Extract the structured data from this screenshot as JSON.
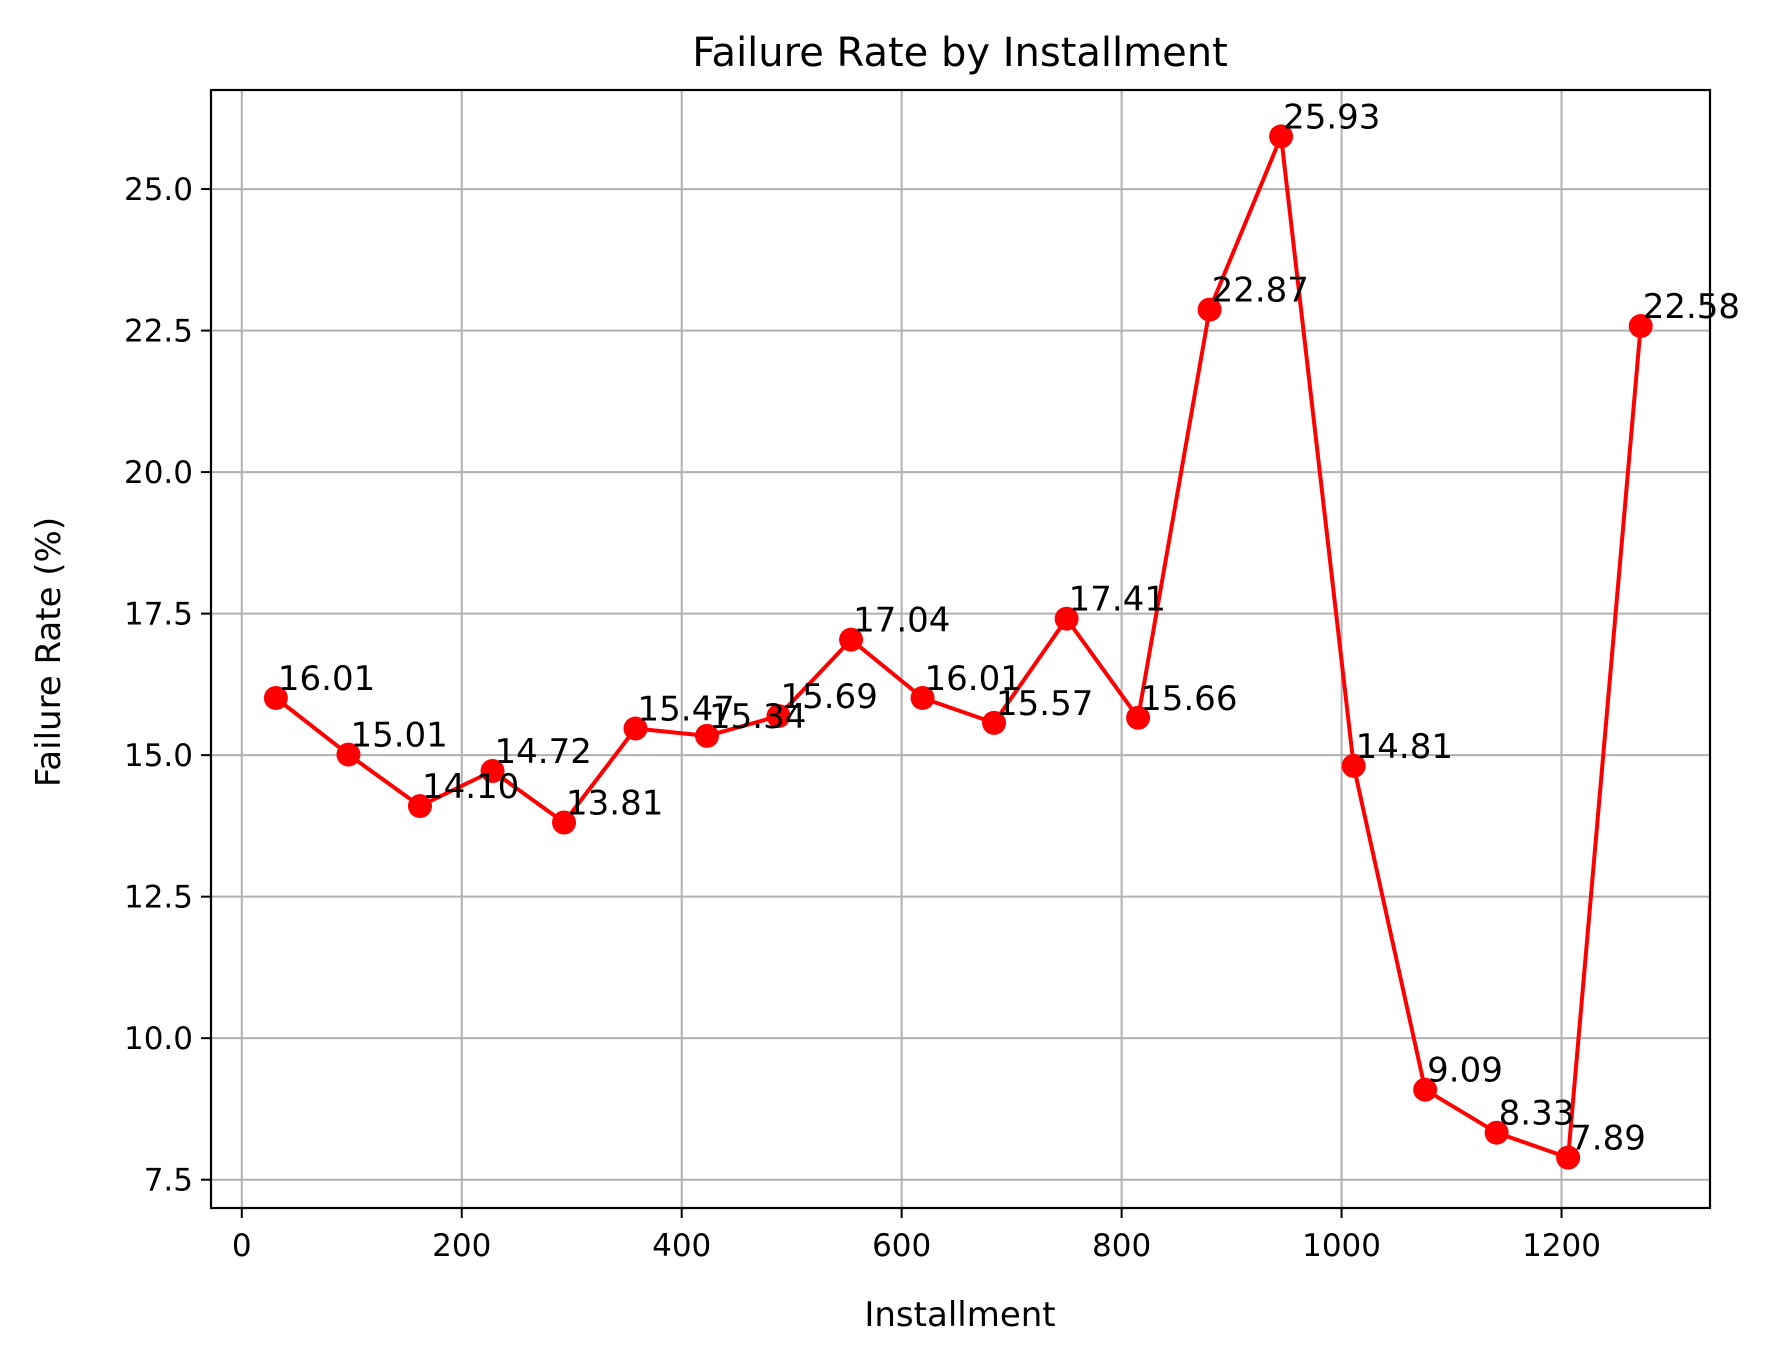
{
  "chart_data": {
    "type": "line",
    "title": "Failure Rate by Installment",
    "xlabel": "Installment",
    "ylabel": "Failure Rate (%)",
    "xlim": [
      -28,
      1335
    ],
    "ylim": [
      7.0,
      26.75
    ],
    "xticks": [
      0,
      200,
      400,
      600,
      800,
      1000,
      1200
    ],
    "xtick_labels": [
      "0",
      "200",
      "400",
      "600",
      "800",
      "1000",
      "1200"
    ],
    "yticks": [
      7.5,
      10.0,
      12.5,
      15.0,
      17.5,
      20.0,
      22.5,
      25.0
    ],
    "ytick_labels": [
      "7.5",
      "10.0",
      "12.5",
      "15.0",
      "17.5",
      "20.0",
      "22.5",
      "25.0"
    ],
    "grid": true,
    "legend": "none",
    "series": [
      {
        "color": "#ff0000",
        "marker": "circle",
        "x": [
          31,
          97,
          162,
          228,
          293,
          358,
          423,
          488,
          554,
          619,
          684,
          750,
          815,
          880,
          945,
          1011,
          1076,
          1141,
          1206,
          1272
        ],
        "y": [
          16.01,
          15.01,
          14.1,
          14.72,
          13.81,
          15.47,
          15.34,
          15.69,
          17.04,
          16.01,
          15.57,
          17.41,
          15.66,
          22.87,
          25.93,
          14.81,
          9.09,
          8.33,
          7.89,
          22.58
        ],
        "labels": [
          "16.01",
          "15.01",
          "14.10",
          "14.72",
          "13.81",
          "15.47",
          "15.34",
          "15.69",
          "17.04",
          "16.01",
          "15.57",
          "17.41",
          "15.66",
          "22.87",
          "25.93",
          "14.81",
          "9.09",
          "8.33",
          "7.89",
          "22.58"
        ]
      }
    ]
  }
}
